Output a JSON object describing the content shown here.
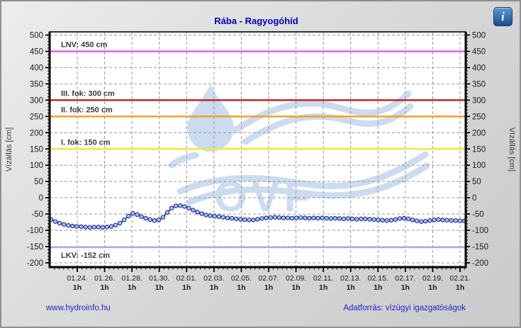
{
  "info": {
    "icon_glyph": "i"
  },
  "chart_data": {
    "type": "line",
    "title": "Rába - Ragyogóhíd",
    "ylabel_left": "Vízállás [cm]",
    "ylabel_right": "Vízállás [cm]",
    "ylim": [
      -200,
      500
    ],
    "ytick_step": 50,
    "y_minor_step": 10,
    "grid": true,
    "x_labels": [
      "01.24.",
      "01.26.",
      "01.28.",
      "01.30.",
      "02.01.",
      "02.03.",
      "02.05.",
      "02.07.",
      "02.09.",
      "02.11.",
      "02.13.",
      "02.15.",
      "02.17.",
      "02.19.",
      "02.21."
    ],
    "x_sublabel": "1h",
    "watermark": "OVF",
    "reference_lines": [
      {
        "name": "LNV",
        "label": "LNV: 450 cm",
        "value": 450,
        "color": "#e063e0",
        "label_side": "above"
      },
      {
        "name": "III. fok",
        "label": "III. fok: 300 cm",
        "value": 300,
        "color": "#bb2a2a",
        "label_side": "above"
      },
      {
        "name": "II. fok",
        "label": "II. fok: 250 cm",
        "value": 250,
        "color": "#f0a124",
        "label_side": "above"
      },
      {
        "name": "I. fok",
        "label": "I. fok: 150 cm",
        "value": 150,
        "color": "#efe93c",
        "label_side": "above"
      },
      {
        "name": "LKV",
        "label": "LKV: -152 cm",
        "value": -152,
        "color": "#a9a9ea",
        "label_side": "below"
      }
    ],
    "series": [
      {
        "name": "vízállás",
        "line_color": "#1b2f9b",
        "marker_fill": "#a9c4ec",
        "values": [
          -67,
          -73,
          -78,
          -82,
          -85,
          -87,
          -88,
          -89,
          -90,
          -91,
          -90,
          -90,
          -91,
          -90,
          -88,
          -84,
          -78,
          -68,
          -56,
          -48,
          -52,
          -58,
          -63,
          -67,
          -70,
          -68,
          -60,
          -45,
          -32,
          -25,
          -24,
          -27,
          -32,
          -38,
          -44,
          -49,
          -53,
          -55,
          -57,
          -58,
          -60,
          -62,
          -63,
          -65,
          -66,
          -67,
          -68,
          -68,
          -66,
          -64,
          -62,
          -61,
          -60,
          -61,
          -62,
          -62,
          -63,
          -62,
          -61,
          -62,
          -63,
          -62,
          -63,
          -62,
          -63,
          -64,
          -63,
          -64,
          -65,
          -64,
          -65,
          -66,
          -65,
          -65,
          -66,
          -67,
          -68,
          -69,
          -70,
          -69,
          -67,
          -64,
          -63,
          -65,
          -68,
          -71,
          -73,
          -72,
          -70,
          -68,
          -67,
          -68,
          -69,
          -70,
          -70,
          -71,
          -71
        ]
      }
    ]
  },
  "footer": {
    "left_link": "www.hydroinfo.hu",
    "right_text": "Adatforrás: vízügyi igazgatóságok"
  },
  "colors": {
    "title_text": "#0000bb",
    "footer_text": "#2222cc",
    "grid": "#999999",
    "axis": "#000000",
    "tick_text": "#1a1a1a",
    "ref_label_text": "#3a3a3a",
    "watermark": "#ccdcf0"
  }
}
